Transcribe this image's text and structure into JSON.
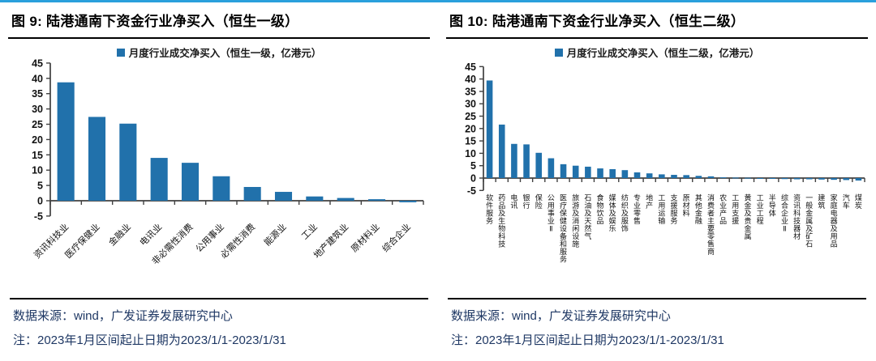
{
  "colors": {
    "top_border": "#2aa0dc",
    "bar_blue": "#2171ab",
    "footer_text": "#1f3864",
    "axis": "#404040",
    "tick_label": "#111111"
  },
  "panels": [
    {
      "title": "图 9: 陆港通南下资金行业净买入（恒生一级）",
      "source": "数据来源：wind，广发证券发展研究中心",
      "note": "注：2023年1月区间起止日期为2023/1/1-2023/1/31"
    },
    {
      "title": "图 10: 陆港通南下资金行业净买入（恒生二级）",
      "source": "数据来源：wind，广发证券发展研究中心",
      "note": "注：2023年1月区间起止日期为2023/1/1-2023/1/31"
    }
  ],
  "chart_data": [
    {
      "type": "bar",
      "legend": "月度行业成交净买入（恒生一级，亿港元）",
      "legend_position": "top",
      "grid": false,
      "xlabel": "",
      "ylabel": "",
      "ylim": [
        -5,
        45
      ],
      "ytick_step": 5,
      "bar_color": "#2171ab",
      "categories": [
        "资讯科技业",
        "医疗保健业",
        "金融业",
        "电讯业",
        "非必需性消费",
        "公用事业",
        "必需性消费",
        "能源业",
        "工业",
        "地产建筑业",
        "原材料业",
        "综合企业"
      ],
      "values": [
        38.7,
        27.4,
        25.2,
        14.0,
        12.4,
        8.0,
        4.5,
        2.9,
        1.4,
        0.9,
        0.5,
        -0.5
      ]
    },
    {
      "type": "bar",
      "legend": "月度行业成交净买入（恒生二级，亿港元）",
      "legend_position": "top",
      "grid": false,
      "xlabel": "",
      "ylabel": "",
      "ylim": [
        -5,
        45
      ],
      "ytick_step": 5,
      "bar_color": "#2171ab",
      "categories": [
        "软件服务",
        "药品及生物科技",
        "电讯",
        "银行",
        "保险",
        "公用事业Ⅱ",
        "医疗保健设备和服务",
        "旅游及消闲设施",
        "石油及天然气",
        "食物饮品",
        "媒体及娱乐",
        "纺织及服饰",
        "专业零售",
        "地产",
        "工用运输",
        "支援服务",
        "原材料",
        "其他金融",
        "消费者主要零售商",
        "农业产品",
        "工用支援",
        "黄金及贵金属",
        "工业工程",
        "半导体",
        "综合企业Ⅱ",
        "资讯科技器材",
        "一般金属及矿石",
        "建筑",
        "家庭电器及用品",
        "汽车",
        "煤炭"
      ],
      "values": [
        39.4,
        21.6,
        13.8,
        13.6,
        10.2,
        8.0,
        5.6,
        5.0,
        4.6,
        3.9,
        3.6,
        3.2,
        2.3,
        1.9,
        1.5,
        1.3,
        1.2,
        0.9,
        0.7,
        0.3,
        0.2,
        0.1,
        -0.2,
        -0.3,
        -0.4,
        -0.5,
        -0.5,
        -0.6,
        -0.7,
        -0.8,
        -1.0
      ]
    }
  ]
}
